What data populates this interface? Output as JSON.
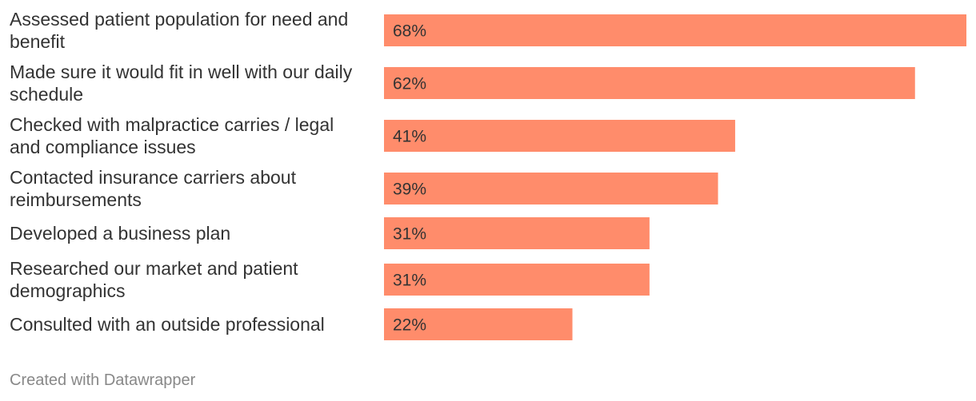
{
  "chart_data": {
    "type": "bar",
    "orientation": "horizontal",
    "categories": [
      "Assessed patient population for need and benefit",
      "Made sure it would fit in well with our daily schedule",
      "Checked with malpractice carries / legal and compliance issues",
      "Contacted insurance carriers about reimbursements",
      "Developed a business plan",
      "Researched our market and patient demographics",
      "Consulted with an outside professional"
    ],
    "label_lines": [
      [
        "Assessed patient population for need and",
        "benefit"
      ],
      [
        "Made sure it would fit in well with our daily",
        "schedule"
      ],
      [
        "Checked with malpractice carries / legal",
        "and compliance issues"
      ],
      [
        "Contacted insurance carriers about",
        "reimbursements"
      ],
      [
        "Developed a business plan"
      ],
      [
        "Researched our market and patient",
        "demographics"
      ],
      [
        "Consulted with an outside professional"
      ]
    ],
    "values": [
      68,
      62,
      41,
      39,
      31,
      31,
      22
    ],
    "value_labels": [
      "68%",
      "62%",
      "41%",
      "39%",
      "31%",
      "31%",
      "22%"
    ],
    "unit": "%",
    "xlim": [
      0,
      68
    ],
    "grid": false,
    "bar_color": "#ff8c6b"
  },
  "footer": {
    "credit": "Created with Datawrapper"
  }
}
